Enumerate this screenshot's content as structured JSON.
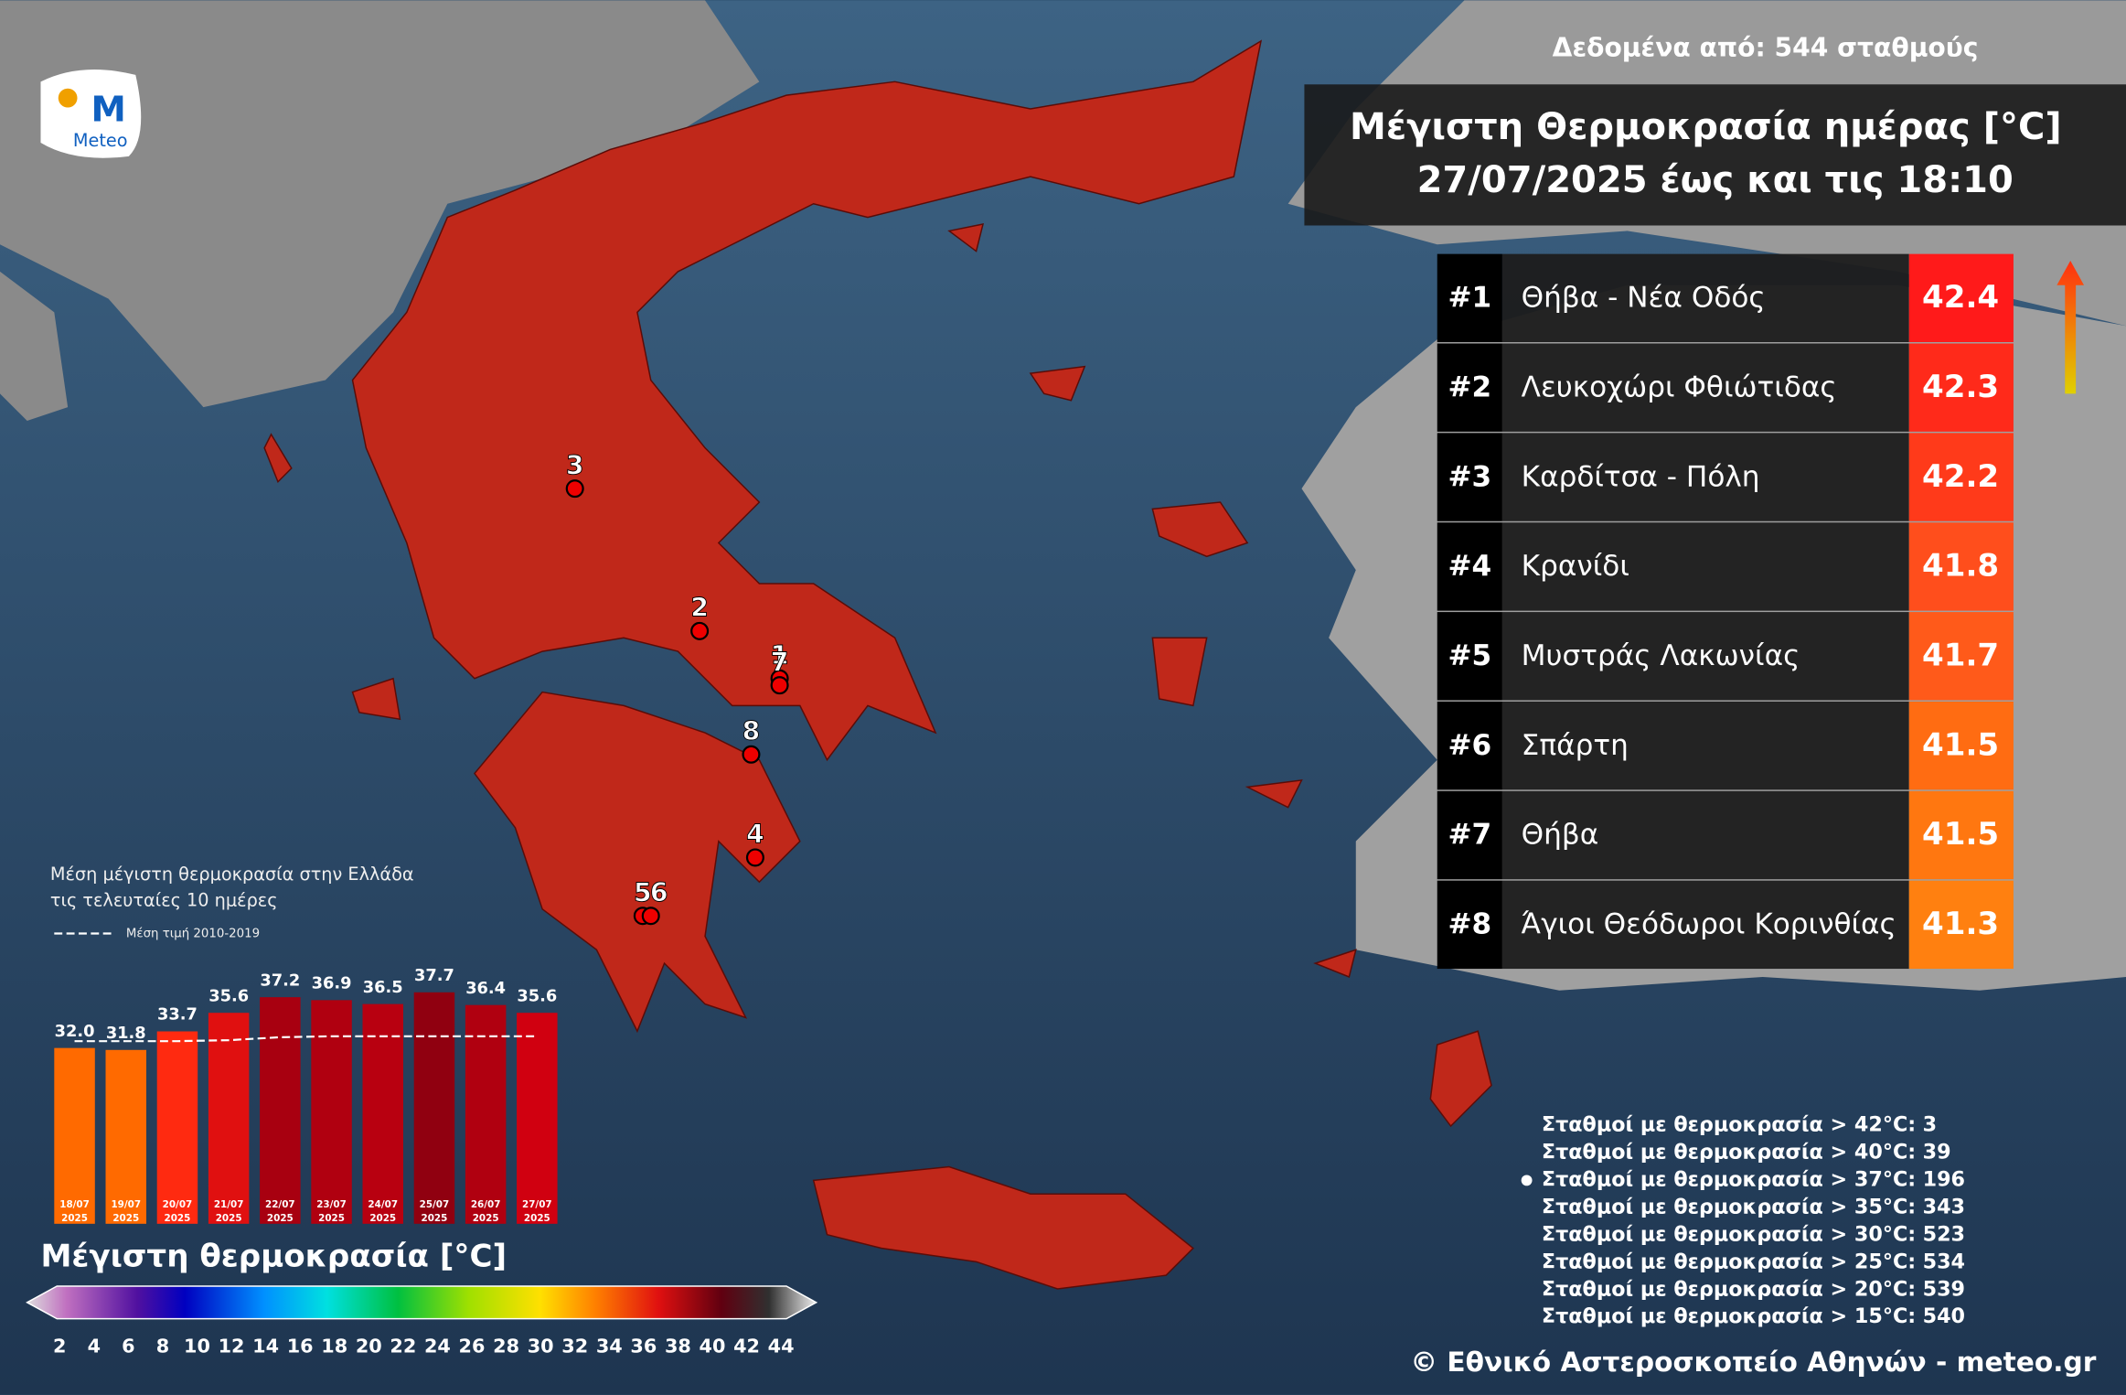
{
  "logo": "Meteo",
  "source": "Δεδομένα από: 544 σταθμούς",
  "title": [
    "Μέγιστη Θερμοκρασία ημέρας [°C]",
    "27/07/2025 έως και τις 18:10"
  ],
  "ranking": [
    {
      "rank": "#1",
      "name": "Θήβα - Νέα Οδός",
      "value": 42.4,
      "color": "#ff1a1a"
    },
    {
      "rank": "#2",
      "name": "Λευκοχώρι Φθιώτιδας",
      "value": 42.3,
      "color": "#ff2a1a"
    },
    {
      "rank": "#3",
      "name": "Καρδίτσα - Πόλη",
      "value": 42.2,
      "color": "#ff3a1a"
    },
    {
      "rank": "#4",
      "name": "Κρανίδι",
      "value": 41.8,
      "color": "#ff4e1c"
    },
    {
      "rank": "#5",
      "name": "Μυστράς Λακωνίας",
      "value": 41.7,
      "color": "#ff5a1a"
    },
    {
      "rank": "#6",
      "name": "Σπάρτη",
      "value": 41.5,
      "color": "#ff6c12"
    },
    {
      "rank": "#7",
      "name": "Θήβα",
      "value": 41.5,
      "color": "#ff7710"
    },
    {
      "rank": "#8",
      "name": "Άγιοι Θεόδωροι Κορινθίας",
      "value": 41.3,
      "color": "#ff8010"
    }
  ],
  "map_markers": [
    1,
    2,
    3,
    4,
    5,
    6,
    7,
    8
  ],
  "inset": {
    "title": [
      "Μέση μέγιστη θερμοκρασία στην Ελλάδα",
      "τις τελευταίες 10 ημέρες"
    ],
    "legend": "Μέση τιμή 2010-2019",
    "dates": [
      "18/07",
      "19/07",
      "20/07",
      "21/07",
      "22/07",
      "23/07",
      "24/07",
      "25/07",
      "26/07",
      "27/07"
    ],
    "year": "2025",
    "values": [
      32.0,
      31.8,
      33.7,
      35.6,
      37.2,
      36.9,
      36.5,
      37.7,
      36.4,
      35.6
    ],
    "value_labels": [
      "32.0",
      "31.8",
      "33.7",
      "35.6",
      "37.2",
      "36.9",
      "36.5",
      "37.7",
      "36.4",
      "35.6"
    ],
    "colors": [
      "#ff6a00",
      "#ff6a00",
      "#ff2a10",
      "#e01010",
      "#a80010",
      "#b00010",
      "#b80010",
      "#900010",
      "#b00010",
      "#d00010"
    ],
    "climatology": [
      32.7,
      32.7,
      32.7,
      32.8,
      33.1,
      33.2,
      33.2,
      33.2,
      33.2,
      33.2
    ]
  },
  "colorbar": {
    "title": "Μέγιστη θερμοκρασία [°C]",
    "ticks": [
      2,
      4,
      6,
      8,
      10,
      12,
      14,
      16,
      18,
      20,
      22,
      24,
      26,
      28,
      30,
      32,
      34,
      36,
      38,
      40,
      42,
      44
    ]
  },
  "stats": [
    {
      "label": "Σταθμοί με θερμοκρασία > 42°C:",
      "count": 3
    },
    {
      "label": "Σταθμοί με θερμοκρασία > 40°C:",
      "count": 39
    },
    {
      "label": "Σταθμοί με θερμοκρασία > 37°C:",
      "count": 196
    },
    {
      "label": "Σταθμοί με θερμοκρασία > 35°C:",
      "count": 343
    },
    {
      "label": "Σταθμοί με θερμοκρασία > 30°C:",
      "count": 523
    },
    {
      "label": "Σταθμοί με θερμοκρασία > 25°C:",
      "count": 534
    },
    {
      "label": "Σταθμοί με θερμοκρασία > 20°C:",
      "count": 539
    },
    {
      "label": "Σταθμοί με θερμοκρασία > 15°C:",
      "count": 540
    }
  ],
  "copyright": "© Εθνικό Αστεροσκοπείο Αθηνών - meteo.gr"
}
